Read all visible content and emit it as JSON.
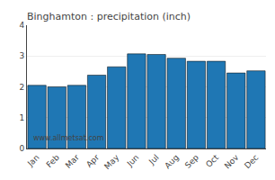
{
  "chart_data": {
    "type": "bar",
    "title": "Binghamton : precipitation (inch)",
    "categories": [
      "Jan",
      "Feb",
      "Mar",
      "Apr",
      "May",
      "Jun",
      "Jul",
      "Aug",
      "Sep",
      "Oct",
      "Nov",
      "Dec"
    ],
    "values": [
      2.05,
      2.0,
      2.05,
      2.38,
      2.65,
      3.07,
      3.05,
      2.93,
      2.83,
      2.83,
      2.45,
      2.52
    ],
    "ylim": [
      0,
      4
    ],
    "yticks": [
      0,
      1,
      2,
      3,
      4
    ],
    "grid": true,
    "annotations": [
      "www.allmetsat.com"
    ]
  }
}
